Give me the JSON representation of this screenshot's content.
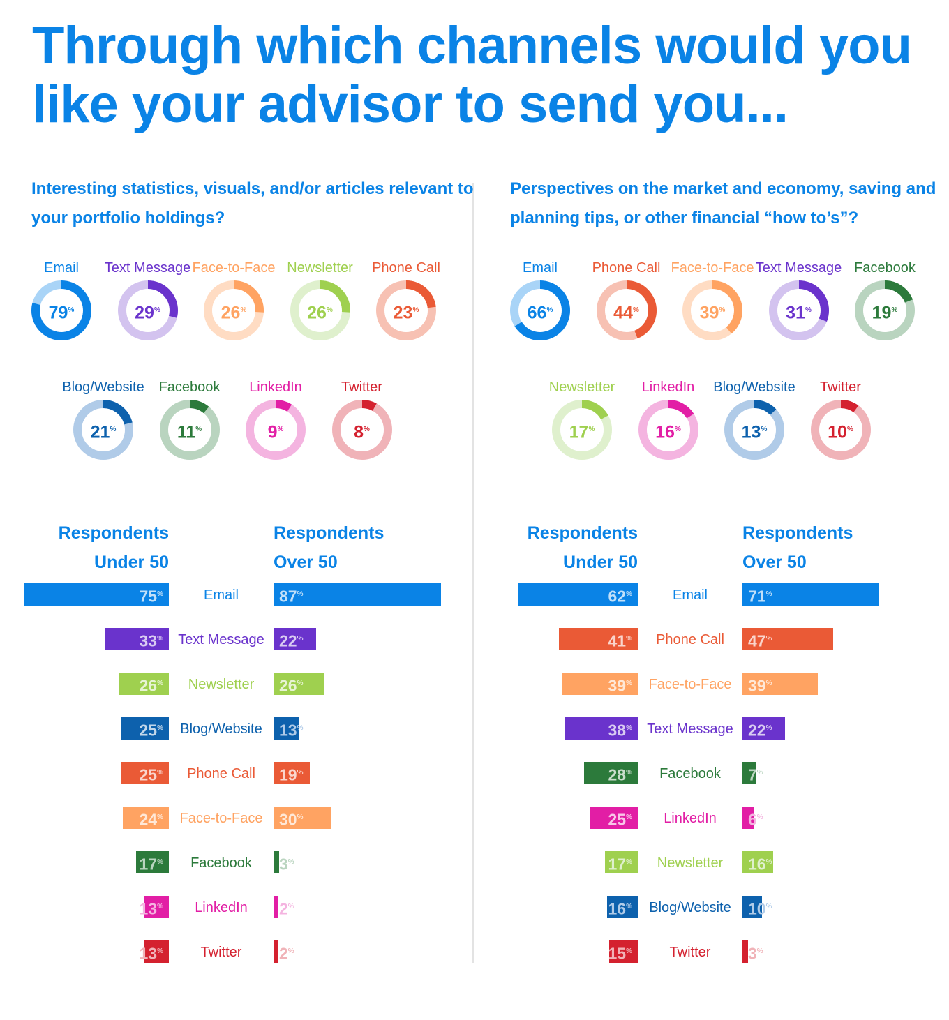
{
  "title": "Through which channels would you like your advisor to send you...",
  "colors": {
    "Email": "#0a83e6",
    "Text Message": "#6a33cc",
    "Face-to-Face": "#ffa362",
    "Newsletter": "#9fd04f",
    "Phone Call": "#ea5a36",
    "Blog/Website": "#0d61ad",
    "Facebook": "#2c7a3b",
    "LinkedIn": "#e21ea5",
    "Twitter": "#d4212f"
  },
  "tracks": {
    "Email": "#a9d4f7",
    "Text Message": "#d3c3ef",
    "Face-to-Face": "#ffdcc3",
    "Newsletter": "#dff0cd",
    "Phone Call": "#f7c1b3",
    "Blog/Website": "#b0cbe8",
    "Facebook": "#b9d4bf",
    "LinkedIn": "#f4b4e0",
    "Twitter": "#f0b3b8"
  },
  "pct_sign": "%",
  "column_headings": {
    "under_line1": "Respondents",
    "under_line2": "Under 50",
    "over_line1": "Respondents",
    "over_line2": "Over 50"
  },
  "chart_data": [
    {
      "type": "donut",
      "title": "Interesting statistics, visuals, and/or articles relevant to your portfolio holdings?",
      "categories": [
        "Email",
        "Text Message",
        "Face-to-Face",
        "Newsletter",
        "Phone Call",
        "Blog/Website",
        "Facebook",
        "LinkedIn",
        "Twitter"
      ],
      "values": [
        79,
        29,
        26,
        26,
        23,
        21,
        11,
        9,
        8
      ],
      "unit": "%"
    },
    {
      "type": "bar",
      "title": "Interesting statistics, visuals, and/or articles relevant to your portfolio holdings?",
      "categories": [
        "Email",
        "Text Message",
        "Newsletter",
        "Blog/Website",
        "Phone Call",
        "Face-to-Face",
        "Facebook",
        "LinkedIn",
        "Twitter"
      ],
      "series": [
        {
          "name": "Respondents Under 50",
          "values": [
            75,
            33,
            26,
            25,
            25,
            24,
            17,
            13,
            13
          ]
        },
        {
          "name": "Respondents Over 50",
          "values": [
            87,
            22,
            26,
            13,
            19,
            30,
            3,
            2,
            2
          ]
        }
      ],
      "unit": "%"
    },
    {
      "type": "donut",
      "title": "Perspectives on the market and economy, saving and planning tips, or other financial “how to’s”?",
      "categories": [
        "Email",
        "Phone Call",
        "Face-to-Face",
        "Text Message",
        "Facebook",
        "Newsletter",
        "LinkedIn",
        "Blog/Website",
        "Twitter"
      ],
      "values": [
        66,
        44,
        39,
        31,
        19,
        17,
        16,
        13,
        10
      ],
      "unit": "%"
    },
    {
      "type": "bar",
      "title": "Perspectives on the market and economy, saving and planning tips, or other financial “how to’s”?",
      "categories": [
        "Email",
        "Phone Call",
        "Face-to-Face",
        "Text Message",
        "Facebook",
        "LinkedIn",
        "Newsletter",
        "Blog/Website",
        "Twitter"
      ],
      "series": [
        {
          "name": "Respondents Under 50",
          "values": [
            62,
            41,
            39,
            38,
            28,
            25,
            17,
            16,
            15
          ]
        },
        {
          "name": "Respondents Over 50",
          "values": [
            71,
            47,
            39,
            22,
            7,
            6,
            16,
            10,
            3
          ]
        }
      ],
      "unit": "%"
    }
  ]
}
